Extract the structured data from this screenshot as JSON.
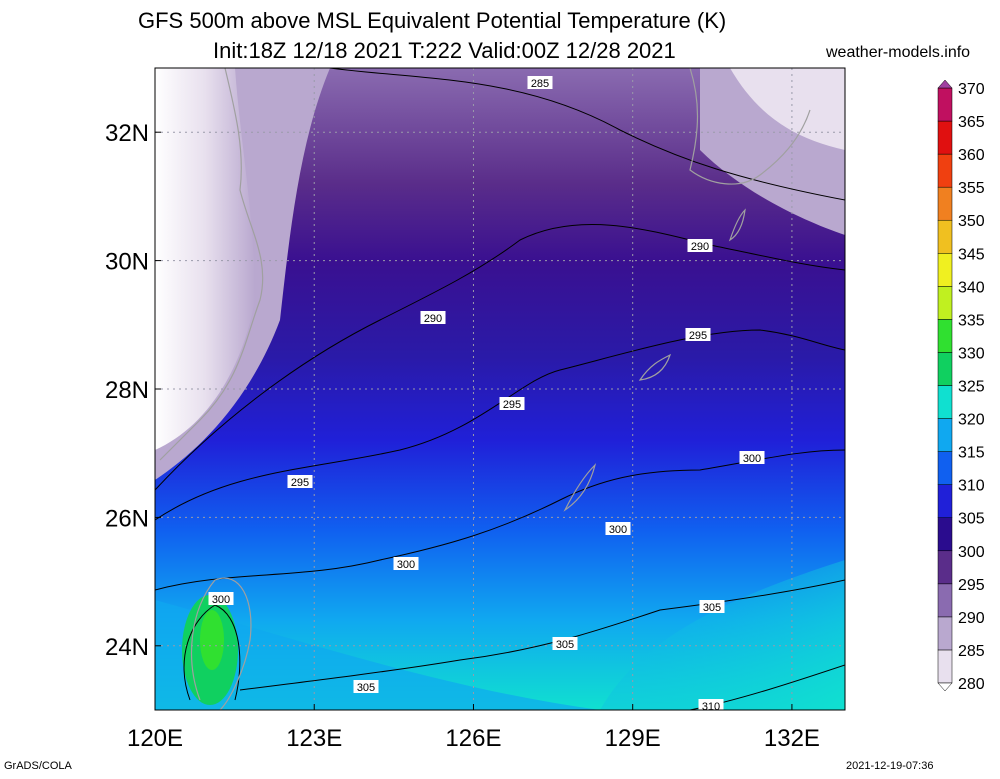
{
  "chart_data": {
    "type": "heatmap",
    "title_line1": "GFS 500m above MSL Equivalent Potential Temperature (K)",
    "title_line2": "Init:18Z 12/18 2021 T:222 Valid:00Z 12/28 2021",
    "watermark": "weather-models.info",
    "units": "K",
    "x_ticks": [
      "120E",
      "123E",
      "126E",
      "129E",
      "132E"
    ],
    "y_ticks": [
      "24N",
      "26N",
      "28N",
      "30N",
      "32N"
    ],
    "xlim": [
      120,
      133
    ],
    "ylim": [
      23,
      33
    ],
    "colorbar_levels": [
      280,
      285,
      290,
      295,
      300,
      305,
      310,
      315,
      320,
      325,
      330,
      335,
      340,
      345,
      350,
      355,
      360,
      365,
      370
    ],
    "colorbar_colors": [
      "#e8e0ee",
      "#b9a8cf",
      "#8a6bb0",
      "#5a2d8a",
      "#2a0c8e",
      "#2020d8",
      "#1060f0",
      "#10a8f0",
      "#10e0d0",
      "#10d060",
      "#30e030",
      "#c0f020",
      "#f0f020",
      "#f0c020",
      "#f08020",
      "#f04010",
      "#e01010",
      "#c01060",
      "#e030e0",
      "#b040c0",
      "#a040a0"
    ],
    "contour_labels": [
      "285",
      "290",
      "290",
      "295",
      "295",
      "295",
      "300",
      "300",
      "300",
      "300",
      "305",
      "305",
      "305",
      "310",
      "300"
    ],
    "footer_left": "GrADS/COLA",
    "footer_right": "2021-12-19-07:36"
  }
}
